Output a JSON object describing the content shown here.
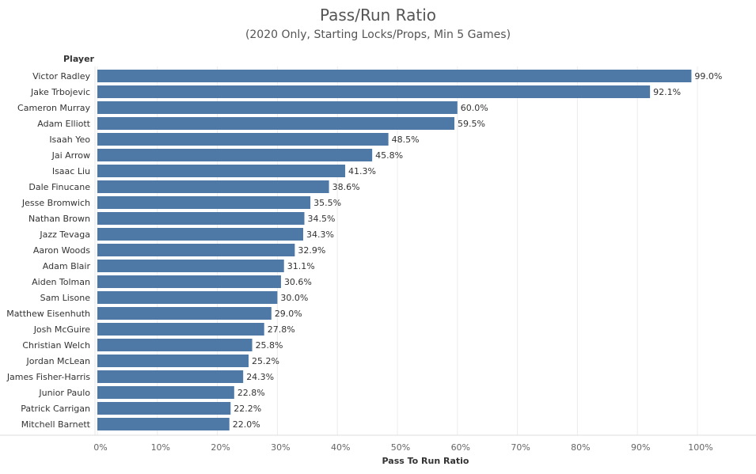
{
  "chart_data": {
    "type": "bar",
    "orientation": "horizontal",
    "title": "Pass/Run Ratio",
    "subtitle": "(2020 Only, Starting Locks/Props, Min 5 Games)",
    "row_header": "Player",
    "xlabel": "Pass To Run Ratio",
    "xlim": [
      0,
      100
    ],
    "x_ticks": [
      "0%",
      "10%",
      "20%",
      "30%",
      "40%",
      "50%",
      "60%",
      "70%",
      "80%",
      "90%",
      "100%"
    ],
    "grid": "vertical",
    "bar_color": "#4e79a7",
    "categories": [
      "Victor Radley",
      "Jake Trbojevic",
      "Cameron Murray",
      "Adam Elliott",
      "Isaah Yeo",
      "Jai Arrow",
      "Isaac Liu",
      "Dale Finucane",
      "Jesse Bromwich",
      "Nathan Brown",
      "Jazz Tevaga",
      "Aaron Woods",
      "Adam Blair",
      "Aiden Tolman",
      "Sam Lisone",
      "Matthew Eisenhuth",
      "Josh McGuire",
      "Christian Welch",
      "Jordan McLean",
      "James Fisher-Harris",
      "Junior Paulo",
      "Patrick Carrigan",
      "Mitchell Barnett"
    ],
    "values": [
      99.0,
      92.1,
      60.0,
      59.5,
      48.5,
      45.8,
      41.3,
      38.6,
      35.5,
      34.5,
      34.3,
      32.9,
      31.1,
      30.6,
      30.0,
      29.0,
      27.8,
      25.8,
      25.2,
      24.3,
      22.8,
      22.2,
      22.0
    ],
    "data_labels": [
      "99.0%",
      "92.1%",
      "60.0%",
      "59.5%",
      "48.5%",
      "45.8%",
      "41.3%",
      "38.6%",
      "35.5%",
      "34.5%",
      "34.3%",
      "32.9%",
      "31.1%",
      "30.6%",
      "30.0%",
      "29.0%",
      "27.8%",
      "25.8%",
      "25.2%",
      "24.3%",
      "22.8%",
      "22.2%",
      "22.0%"
    ]
  }
}
